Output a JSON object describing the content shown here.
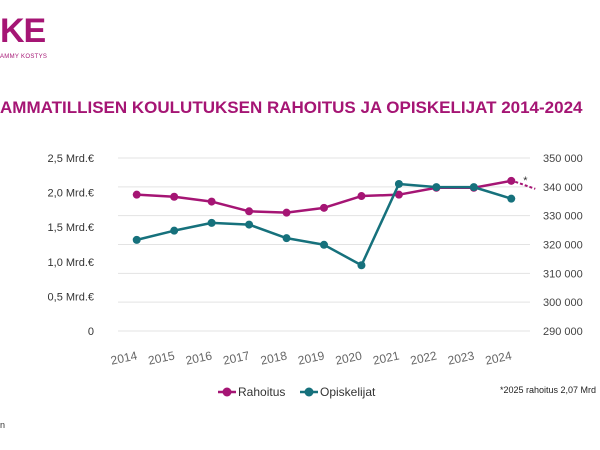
{
  "brand": {
    "logo_text": "KE",
    "tagline": "AMMY KOSTYS"
  },
  "title": "AMMATILLISEN KOULUTUKSEN RAHOITUS JA OPISKELIJAT 2014-2024",
  "colors": {
    "accent": "#a51574",
    "rahoitus": "#a51574",
    "opiskelijat": "#16717c"
  },
  "footnote": "*2025 rahoitus 2,07 Mrd",
  "source": "n",
  "chart_data": {
    "type": "line",
    "categories": [
      "2014",
      "2015",
      "2016",
      "2017",
      "2018",
      "2019",
      "2020",
      "2021",
      "2022",
      "2023",
      "2024"
    ],
    "series": [
      {
        "name": "Rahoitus",
        "axis": "left",
        "values": [
          1.97,
          1.94,
          1.87,
          1.73,
          1.71,
          1.78,
          1.95,
          1.97,
          2.07,
          2.07,
          2.17
        ]
      },
      {
        "name": "Opiskelijat",
        "axis": "right",
        "values": [
          321600,
          324800,
          327500,
          326900,
          322200,
          319900,
          312800,
          341000,
          339900,
          339900,
          335900
        ]
      }
    ],
    "projection": {
      "series": "Rahoitus",
      "label": "*",
      "value": 2.07
    },
    "y_left": {
      "ylim": [
        0,
        2.5
      ],
      "ticks": [
        0,
        0.5,
        1.0,
        1.5,
        2.0,
        2.5
      ],
      "tick_labels": [
        "0",
        "0,5 Mrd.€",
        "1,0 Mrd.€",
        "1,5 Mrd.€",
        "2,0 Mrd.€",
        "2,5 Mrd.€"
      ]
    },
    "y_right": {
      "ylim": [
        290000,
        350000
      ],
      "ticks": [
        290000,
        300000,
        310000,
        320000,
        330000,
        340000,
        350000
      ],
      "tick_labels": [
        "290 000",
        "300 000",
        "310 000",
        "320 000",
        "330 000",
        "340 000",
        "350 000"
      ]
    },
    "grid": true,
    "legend_position": "bottom"
  }
}
